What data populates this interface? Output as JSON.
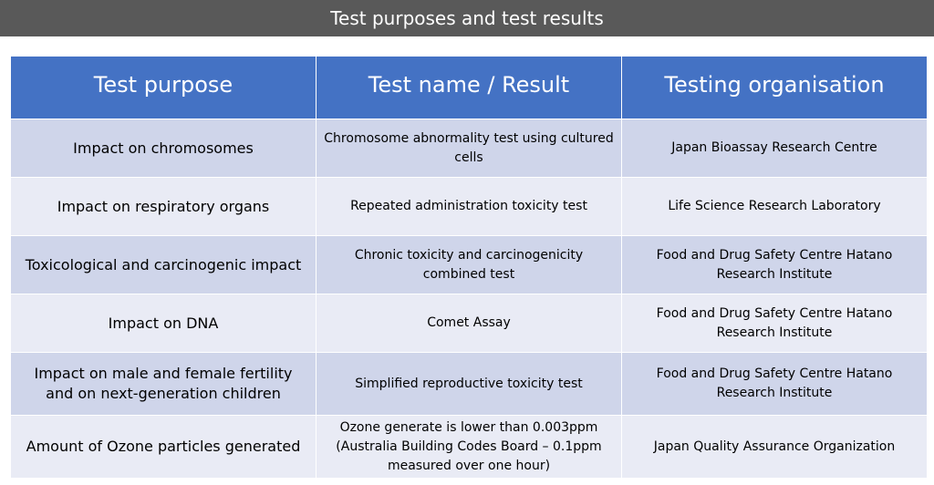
{
  "page": {
    "title": "Test purposes and test results"
  },
  "table": {
    "headers": [
      "Test purpose",
      "Test name / Result",
      "Testing organisation"
    ],
    "rows": [
      {
        "purpose": "Impact on chromosomes",
        "name": "Chromosome abnormality test using cultured cells",
        "organisation": "Japan Bioassay Research Centre"
      },
      {
        "purpose": "Impact on respiratory organs",
        "name": "Repeated administration toxicity test",
        "organisation": "Life Science Research Laboratory"
      },
      {
        "purpose": "Toxicological and carcinogenic impact",
        "name": "Chronic toxicity and carcinogenicity combined test",
        "organisation": "Food and Drug Safety Centre Hatano Research Institute"
      },
      {
        "purpose": "Impact on DNA",
        "name": "Comet Assay",
        "organisation": "Food and Drug Safety Centre Hatano Research Institute"
      },
      {
        "purpose": "Impact on male and female fertility and on next-generation children",
        "name": "Simplified reproductive toxicity test",
        "organisation": "Food and Drug Safety Centre Hatano Research Institute"
      },
      {
        "purpose": "Amount of Ozone particles generated",
        "name": "Ozone generate is lower than 0.003ppm (Australia Building Codes Board – 0.1ppm measured over one hour)",
        "organisation": "Japan Quality Assurance Organization"
      }
    ]
  },
  "colors": {
    "title_bar_bg": "#595959",
    "header_bg": "#4472c4",
    "row_band_dark": "#cfd5ea",
    "row_band_light": "#e9ebf5"
  }
}
